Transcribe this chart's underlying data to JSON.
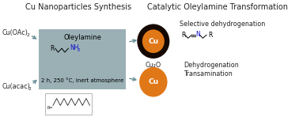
{
  "title_left": "Cu Nanoparticles Synthesis",
  "title_right": "Catalytic Oleylamine Transformation",
  "box_label1": "Oleylamine",
  "box_label2": "2 h, 250 °C, inert atmosphere",
  "box_color": "#8fa8ad",
  "cu2o_label": "Cu₂O",
  "cu_label": "Cu",
  "circle_outer_color": "#150800",
  "circle_inner_color": "#e07818",
  "circle_cu_color": "#e07818",
  "arrow_color": "#6a9098",
  "right_label1": "Selective dehydrogenation",
  "right_label2": "Dehydrogenation",
  "right_label3": "Transamination",
  "bg_color": "#ffffff",
  "text_color": "#222222",
  "font_size_title": 7.0,
  "font_size_label": 5.8,
  "font_size_box": 5.5,
  "nh2_color": "#1010cc",
  "n_color": "#1010cc"
}
